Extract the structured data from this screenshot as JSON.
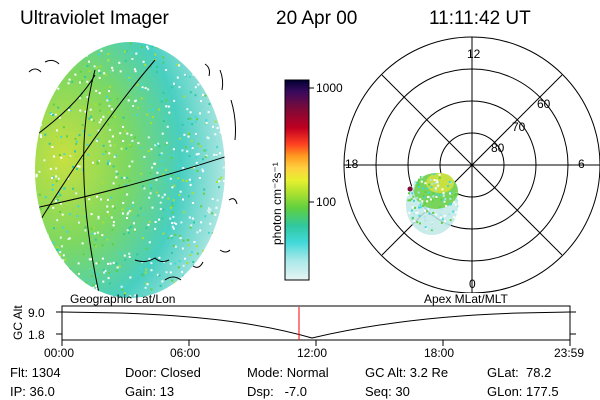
{
  "header": {
    "instrument": "Ultraviolet Imager",
    "date": "20 Apr 00",
    "time": "11:11:42 UT"
  },
  "colorbar": {
    "unit_label": "photon cm⁻²s⁻¹",
    "tick_labels": [
      "1000",
      "100"
    ],
    "scale": "log",
    "colors": [
      "#000033",
      "#3a0a5e",
      "#7a0a3a",
      "#c00020",
      "#ff4020",
      "#ff9a20",
      "#ffd040",
      "#e8f030",
      "#a8e030",
      "#60d040",
      "#30c8a0",
      "#40d8d8",
      "#a8e8e8",
      "#e8f4f4"
    ]
  },
  "geo_panel": {
    "label": "Geographic Lat/Lon"
  },
  "polar_panel": {
    "label": "Apex MLat/MLT",
    "mlt_labels": [
      "12",
      "18",
      "6",
      "0"
    ],
    "mlat_labels": [
      "60",
      "70",
      "80"
    ]
  },
  "altitude_plot": {
    "ylabel": "GC Alt",
    "y_ticks": [
      "9.0",
      "1.8"
    ],
    "x_ticks": [
      "00:00",
      "06:00",
      "12:00",
      "18:00",
      "23:59"
    ],
    "current_time": "11:11:42",
    "marker_color": "#ff0000"
  },
  "status": {
    "flt": "Flt: 1304",
    "ip": "IP: 36.0",
    "door": "Door: Closed",
    "gain": "Gain: 13",
    "mode": "Mode: Normal",
    "dsp": "Dsp:   -7.0",
    "gc_alt": "GC Alt: 3.2 Re",
    "seq": "Seq: 30",
    "glat": "GLat:  78.2",
    "glon": "GLon: 177.5"
  }
}
